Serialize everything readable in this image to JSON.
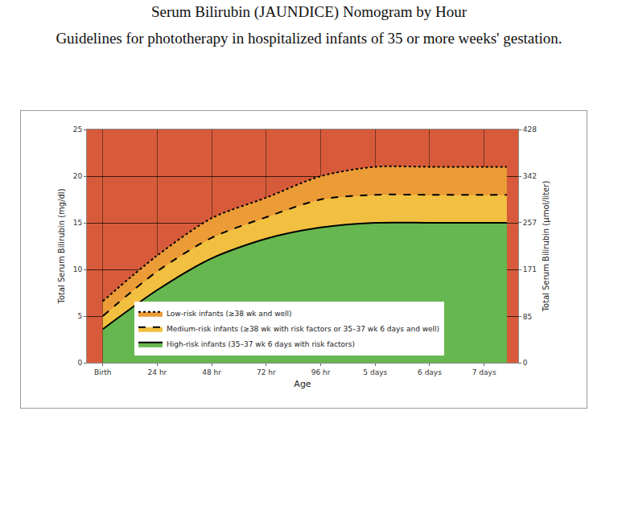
{
  "chart_data": {
    "type": "line",
    "title": "Serum Bilirubin (JAUNDICE) Nomogram by Hour",
    "subtitle": "Guidelines for phototherapy in hospitalized infants of 35 or more weeks' gestation.",
    "x_label": "Age",
    "y_label": "Total Serum Bilirubin (mg/dl)",
    "y2_label": "Total Serum Bilirubin (µmol/liter)",
    "x": [
      0,
      24,
      48,
      72,
      96,
      120,
      144,
      168,
      178
    ],
    "series": [
      {
        "name": "Low-risk infants (≥38 wk and well)",
        "color": "#000000",
        "line_style": "dotted",
        "values": [
          6.6,
          11.5,
          15.5,
          17.7,
          20.0,
          21.0,
          21.0,
          21.0,
          21.0
        ]
      },
      {
        "name": "Medium-risk infants (≥38 wk with risk factors or 35–37 wk 6 days and well)",
        "color": "#000000",
        "line_style": "dashed",
        "values": [
          5.0,
          9.8,
          13.4,
          15.6,
          17.5,
          18.0,
          18.0,
          18.0,
          18.0
        ]
      },
      {
        "name": "High-risk infants (35–37 wk 6 days with risk factors)",
        "color": "#000000",
        "line_style": "solid",
        "values": [
          3.6,
          7.8,
          11.2,
          13.3,
          14.5,
          15.0,
          15.0,
          15.0,
          15.0
        ]
      }
    ],
    "xlim": [
      -7,
      183
    ],
    "xticks": [
      {
        "value": 0,
        "label": "Birth"
      },
      {
        "value": 24,
        "label": "24 hr"
      },
      {
        "value": 48,
        "label": "48 hr"
      },
      {
        "value": 72,
        "label": "72 hr"
      },
      {
        "value": 96,
        "label": "96 hr"
      },
      {
        "value": 120,
        "label": "5 days"
      },
      {
        "value": 144,
        "label": "6 days"
      },
      {
        "value": 168,
        "label": "7 days"
      }
    ],
    "ylim": [
      0,
      25
    ],
    "yticks": [
      0,
      5,
      10,
      15,
      20,
      25
    ],
    "y2lim": [
      0,
      428
    ],
    "y2ticks": [
      0,
      85,
      171,
      257,
      342,
      428
    ],
    "grid": true,
    "legend": "lower left"
  }
}
